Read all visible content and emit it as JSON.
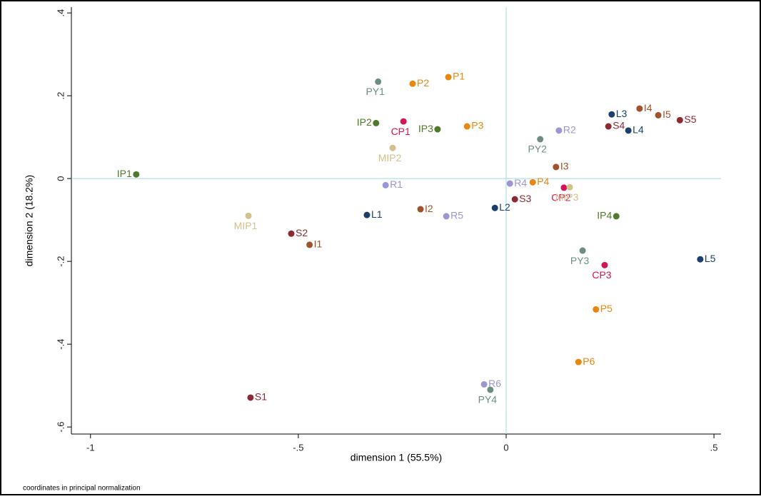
{
  "chart_data": {
    "type": "scatter",
    "x_label": "dimension 1 (55.5%)",
    "y_label": "dimension 2 (18.2%)",
    "note": "coordinates in principal normalization",
    "xlim": [
      -1.046,
      0.517
    ],
    "ylim": [
      -0.617,
      0.414
    ],
    "xticks": [
      -1,
      {
        "value": -0.5,
        "label": "-.5"
      },
      0,
      {
        "value": 0.5,
        "label": ".5"
      }
    ],
    "yticks": [
      {
        "value": -0.6,
        "label": "-.6"
      },
      {
        "value": -0.4,
        "label": "-.4"
      },
      {
        "value": -0.2,
        "label": "-.2"
      },
      0,
      {
        "value": 0.2,
        "label": ".2"
      },
      {
        "value": 0.4,
        "label": ".4"
      }
    ],
    "xline": 0,
    "yline": 0,
    "grid": false,
    "series": [
      {
        "color": "#e8870e",
        "labels": [
          "P1",
          "P2",
          "P3",
          "P4",
          "P5",
          "P6"
        ],
        "x": [
          -0.139,
          -0.225,
          -0.094,
          0.064,
          0.216,
          0.174
        ],
        "values": [
          0.245,
          0.229,
          0.126,
          -0.009,
          -0.316,
          -0.443
        ]
      },
      {
        "color": "#6b8e7f",
        "labels": [
          "PY1",
          "PY2",
          "PY3",
          "PY4"
        ],
        "x": [
          -0.308,
          0.082,
          0.184,
          -0.038
        ],
        "values": [
          0.234,
          0.095,
          -0.174,
          -0.51
        ]
      },
      {
        "color": "#4f7a28",
        "labels": [
          "IP1",
          "IP2",
          "IP3",
          "IP4"
        ],
        "x": [
          -0.89,
          -0.313,
          -0.165,
          0.265
        ],
        "values": [
          0.01,
          0.134,
          0.119,
          -0.091
        ]
      },
      {
        "color": "#d4145a",
        "labels": [
          "CP1",
          "CP2",
          "CP3"
        ],
        "x": [
          -0.247,
          0.139,
          0.237
        ],
        "values": [
          0.138,
          -0.022,
          -0.209
        ]
      },
      {
        "color": "#d2c18a",
        "labels": [
          "MIP1",
          "MIP2",
          "MIP3"
        ],
        "x": [
          -0.62,
          -0.273,
          0.153
        ],
        "values": [
          -0.09,
          0.074,
          -0.021
        ]
      },
      {
        "color": "#1a3f6b",
        "labels": [
          "L1",
          "L2",
          "L3",
          "L4",
          "L5"
        ],
        "x": [
          -0.335,
          -0.027,
          0.254,
          0.294,
          0.467
        ],
        "values": [
          -0.088,
          -0.071,
          0.155,
          0.116,
          -0.195
        ]
      },
      {
        "color": "#8b2a35",
        "labels": [
          "S1",
          "S2",
          "S3",
          "S4",
          "S5"
        ],
        "x": [
          -0.615,
          -0.517,
          0.021,
          0.246,
          0.418
        ],
        "values": [
          -0.529,
          -0.133,
          -0.05,
          0.126,
          0.141
        ]
      },
      {
        "color": "#a0522d",
        "labels": [
          "I1",
          "I2",
          "I3",
          "I4",
          "I5"
        ],
        "x": [
          -0.473,
          -0.206,
          0.12,
          0.321,
          0.366
        ],
        "values": [
          -0.16,
          -0.074,
          0.028,
          0.169,
          0.153
        ]
      },
      {
        "color": "#9b97d6",
        "labels": [
          "R1",
          "R2",
          "R4",
          "R5",
          "R6"
        ],
        "x": [
          -0.29,
          0.127,
          0.009,
          -0.144,
          -0.053
        ],
        "values": [
          -0.016,
          0.116,
          -0.012,
          -0.091,
          -0.497
        ]
      }
    ]
  }
}
